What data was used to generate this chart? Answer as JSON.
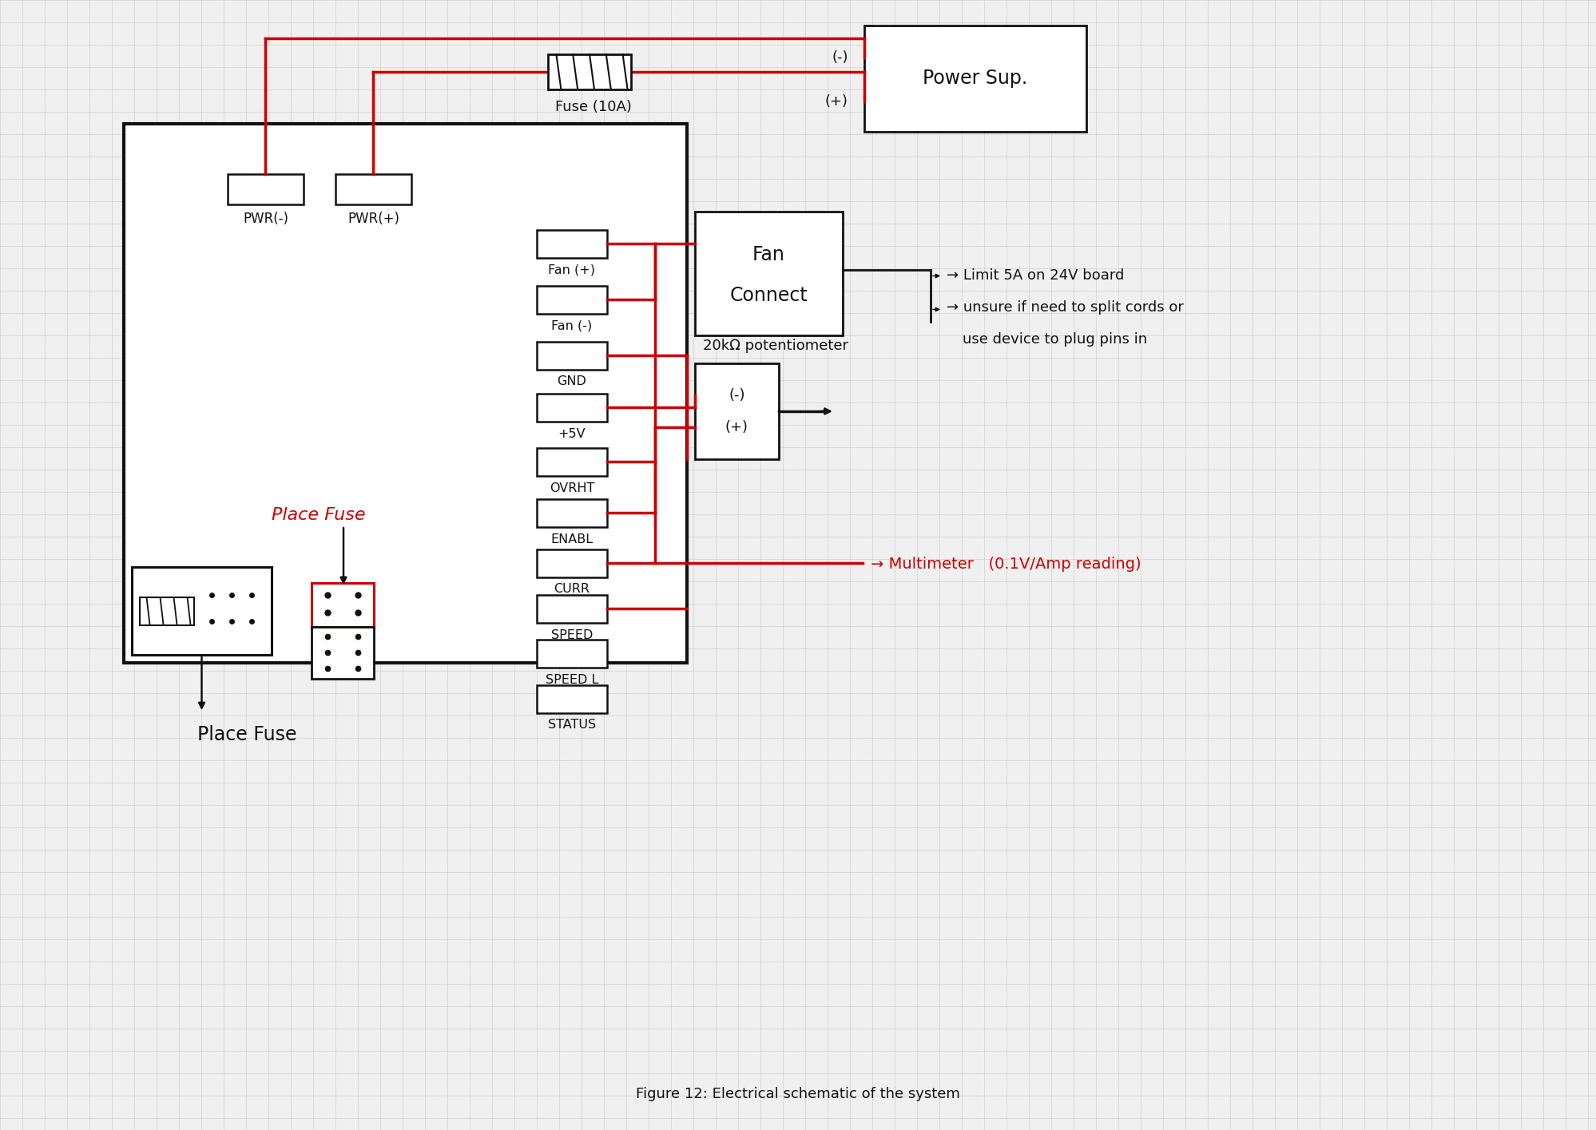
{
  "bg_color": "#f0f0f0",
  "grid_color": "#d0d0d0",
  "line_color": "#111111",
  "red_color": "#cc0000",
  "title": "Figure 12: Electrical schematic of the system",
  "terminal_labels": [
    "Fan (+)",
    "Fan (-)",
    "GND",
    "+5V",
    "OVRHT",
    "ENABL",
    "CURR",
    "SPEED",
    "SPEED L",
    "STATUS"
  ],
  "pwr_labels": [
    "PWR(-)",
    "PWR(+)"
  ],
  "fuse_label": "Fuse (10A)",
  "fan_label1": "Fan",
  "fan_label2": "Connect",
  "pot_label": "20kΩ potentiometer",
  "ps_label": "Power Sup.",
  "note1": "→ Limit 5A on 24V board",
  "note2": "→ unsure if need to split cords or",
  "note3": "  use device to plug pins in",
  "multimeter_label": "→ Multimeter   (0.1V/Amp reading)",
  "place_fuse_red": "Place Fuse",
  "place_fuse_black": "Place Fuse"
}
